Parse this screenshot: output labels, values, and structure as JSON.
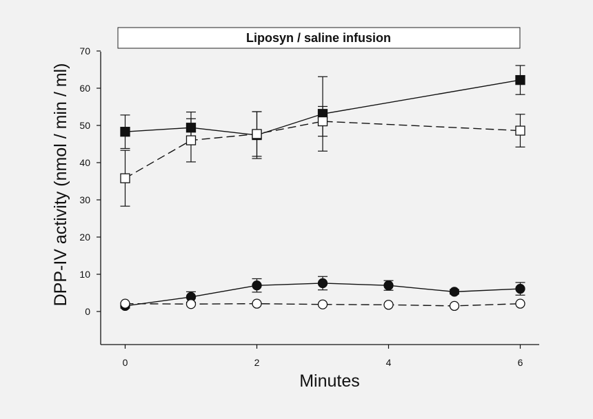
{
  "chart_data": {
    "type": "line",
    "title": "Liposyn / saline infusion",
    "xlabel": "Minutes",
    "ylabel": "DPP-IV activity (nmol / min / ml)",
    "xlim": [
      -0.4,
      6.3
    ],
    "ylim": [
      -9,
      70
    ],
    "xticks": [
      0,
      2,
      4,
      6
    ],
    "yticks": [
      0,
      10,
      20,
      30,
      40,
      50,
      60,
      70
    ],
    "grid": false,
    "series": [
      {
        "name": "filled squares",
        "marker": "square",
        "fill": "filled",
        "dash": "solid",
        "x": [
          0,
          1,
          2,
          3,
          6
        ],
        "y": [
          48.3,
          49.4,
          47.4,
          53.1,
          62.2
        ],
        "err": [
          4.5,
          4.2,
          6.3,
          10.0,
          3.9
        ]
      },
      {
        "name": "open squares",
        "marker": "square",
        "fill": "open",
        "dash": "dashed",
        "x": [
          0,
          1,
          2,
          3,
          6
        ],
        "y": [
          35.8,
          46.0,
          47.7,
          51.1,
          48.6
        ],
        "err": [
          7.5,
          5.8,
          6.0,
          4.0,
          4.4
        ]
      },
      {
        "name": "filled circles",
        "marker": "circle",
        "fill": "filled",
        "dash": "solid",
        "x": [
          0,
          1,
          2,
          3,
          4,
          5,
          6
        ],
        "y": [
          1.5,
          3.9,
          7.0,
          7.6,
          7.0,
          5.3,
          6.1
        ],
        "err": [
          0.6,
          1.4,
          1.8,
          1.8,
          1.3,
          0.6,
          1.7
        ]
      },
      {
        "name": "open circles",
        "marker": "circle",
        "fill": "open",
        "dash": "dashed",
        "x": [
          0,
          1,
          2,
          3,
          4,
          5,
          6
        ],
        "y": [
          2.1,
          2.0,
          2.1,
          1.9,
          1.8,
          1.5,
          2.1
        ],
        "err": [
          0,
          0,
          0,
          0,
          0,
          0,
          0
        ]
      }
    ]
  }
}
